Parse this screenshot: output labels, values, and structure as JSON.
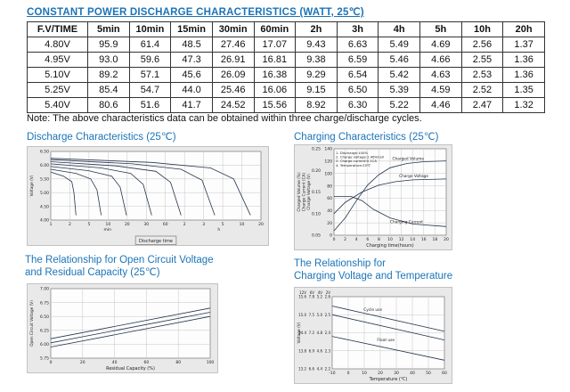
{
  "page": {
    "title": "CONSTANT POWER DISCHARGE CHARACTERISTICS (WATT, 25℃)",
    "note": "Note: The above characteristics data can be obtained within three charge/discharge cycles."
  },
  "colors": {
    "accent": "#1b74b8",
    "chart_line": "#24344d"
  },
  "table": {
    "headers": [
      "F.V/TIME",
      "5min",
      "10min",
      "15min",
      "30min",
      "60min",
      "2h",
      "3h",
      "4h",
      "5h",
      "10h",
      "20h"
    ],
    "rows": [
      [
        "4.80V",
        "95.9",
        "61.4",
        "48.5",
        "27.46",
        "17.07",
        "9.43",
        "6.63",
        "5.49",
        "4.69",
        "2.56",
        "1.37"
      ],
      [
        "4.95V",
        "93.0",
        "59.6",
        "47.3",
        "26.91",
        "16.81",
        "9.38",
        "6.59",
        "5.46",
        "4.66",
        "2.55",
        "1.36"
      ],
      [
        "5.10V",
        "89.2",
        "57.1",
        "45.6",
        "26.09",
        "16.38",
        "9.29",
        "6.54",
        "5.42",
        "4.63",
        "2.53",
        "1.36"
      ],
      [
        "5.25V",
        "85.4",
        "54.7",
        "44.0",
        "25.46",
        "16.06",
        "9.15",
        "6.50",
        "5.39",
        "4.59",
        "2.52",
        "1.35"
      ],
      [
        "5.40V",
        "80.6",
        "51.6",
        "41.7",
        "24.52",
        "15.56",
        "8.92",
        "6.30",
        "5.22",
        "4.46",
        "2.47",
        "1.32"
      ]
    ]
  },
  "sections": [
    {
      "heading": "Discharge Characteristics (25℃)"
    },
    {
      "heading": "Charging Characteristics (25℃)"
    },
    {
      "heading": "The Relationship for Open Circuit Voltage\nand Residual Capacity (25℃)"
    },
    {
      "heading": "The Relationship for\nCharging Voltage and Temperature"
    }
  ],
  "chart_data": [
    {
      "type": "line",
      "title": "Discharge Characteristics (25℃)",
      "ylabel": "Voltage (V)",
      "xlabel": "Discharge time",
      "xlabel_boxed": true,
      "yticks": [
        "6.50",
        "6.00",
        "5.50",
        "5.00",
        "4.50",
        "4.00"
      ],
      "xticks": [
        "1",
        "2",
        "5",
        "10",
        "20",
        "30",
        "60",
        "2",
        "3",
        "5",
        "10",
        "20"
      ],
      "xunit_labels": [
        {
          "text": "min",
          "x": 0.27
        },
        {
          "text": "h",
          "x": 0.8
        }
      ],
      "margins": {
        "l": 26,
        "r": 8,
        "t": 5,
        "b": 28
      },
      "series": [
        {
          "name": "curve-1",
          "points": [
            [
              0,
              0.3
            ],
            [
              0.06,
              0.36
            ],
            [
              0.1,
              0.44
            ],
            [
              0.11,
              0.6
            ],
            [
              0.12,
              0.93
            ]
          ]
        },
        {
          "name": "curve-2",
          "points": [
            [
              0,
              0.26
            ],
            [
              0.12,
              0.32
            ],
            [
              0.19,
              0.4
            ],
            [
              0.22,
              0.56
            ],
            [
              0.24,
              0.93
            ]
          ]
        },
        {
          "name": "curve-3",
          "points": [
            [
              0,
              0.22
            ],
            [
              0.18,
              0.28
            ],
            [
              0.29,
              0.36
            ],
            [
              0.33,
              0.52
            ],
            [
              0.36,
              0.93
            ]
          ]
        },
        {
          "name": "curve-4",
          "points": [
            [
              0,
              0.18
            ],
            [
              0.24,
              0.24
            ],
            [
              0.38,
              0.32
            ],
            [
              0.44,
              0.48
            ],
            [
              0.48,
              0.93
            ]
          ]
        },
        {
          "name": "curve-5",
          "points": [
            [
              0,
              0.15
            ],
            [
              0.31,
              0.21
            ],
            [
              0.5,
              0.29
            ],
            [
              0.57,
              0.45
            ],
            [
              0.62,
              0.93
            ]
          ]
        },
        {
          "name": "curve-6",
          "points": [
            [
              0,
              0.12
            ],
            [
              0.39,
              0.18
            ],
            [
              0.62,
              0.26
            ],
            [
              0.72,
              0.42
            ],
            [
              0.78,
              0.93
            ]
          ]
        },
        {
          "name": "curve-7",
          "points": [
            [
              0,
              0.1
            ],
            [
              0.48,
              0.16
            ],
            [
              0.76,
              0.24
            ],
            [
              0.87,
              0.4
            ],
            [
              0.95,
              0.93
            ]
          ]
        }
      ]
    },
    {
      "type": "line",
      "title": "Charging Characteristics (25℃)",
      "ylabels": [
        "Charged Volume (%)",
        "Charge Current (CA)",
        "Charge Voltage (V)"
      ],
      "xlabel": "Charging time(hours)",
      "yticks": [
        "140",
        "120",
        "100",
        "80",
        "60",
        "40",
        "20",
        "0"
      ],
      "yticks2": [
        "0.25",
        "0.20",
        "0.15",
        "0.10",
        "0.05"
      ],
      "xticks": [
        "0",
        "2",
        "4",
        "6",
        "8",
        "10",
        "12",
        "14",
        "16",
        "18",
        "20"
      ],
      "margins": {
        "l": 44,
        "r": 6,
        "t": 4,
        "b": 16
      },
      "legend_lines": [
        "1. Discharge:100%",
        "2. Charge voltage:2.46V/cell",
        "3. Charge current:0.1CA",
        "4. Temperature:25℃"
      ],
      "annotations": [
        {
          "text": "Charged Volume",
          "x": 0.52,
          "y": 0.13
        },
        {
          "text": "Charge Voltage",
          "x": 0.58,
          "y": 0.33
        },
        {
          "text": "Charging Current",
          "x": 0.5,
          "y": 0.86
        }
      ],
      "series": [
        {
          "name": "charged-volume",
          "points": [
            [
              0,
              0.95
            ],
            [
              0.1,
              0.8
            ],
            [
              0.2,
              0.6
            ],
            [
              0.3,
              0.42
            ],
            [
              0.4,
              0.3
            ],
            [
              0.5,
              0.22
            ],
            [
              0.65,
              0.17
            ],
            [
              0.8,
              0.15
            ],
            [
              1,
              0.14
            ]
          ]
        },
        {
          "name": "charge-voltage",
          "points": [
            [
              0,
              0.75
            ],
            [
              0.1,
              0.62
            ],
            [
              0.25,
              0.5
            ],
            [
              0.4,
              0.42
            ],
            [
              0.55,
              0.38
            ],
            [
              0.7,
              0.36
            ],
            [
              1,
              0.35
            ]
          ]
        },
        {
          "name": "charging-current",
          "points": [
            [
              0,
              0.55
            ],
            [
              0.15,
              0.55
            ],
            [
              0.25,
              0.6
            ],
            [
              0.35,
              0.7
            ],
            [
              0.5,
              0.8
            ],
            [
              0.7,
              0.87
            ],
            [
              1,
              0.9
            ]
          ]
        }
      ]
    },
    {
      "type": "line",
      "title": "The Relationship for Open Circuit Voltage and Residual Capacity (25℃)",
      "ylabel": "Open Circuit Voltage (V)",
      "xlabel": "Residual Capacity (%)",
      "yticks": [
        "7.00",
        "6.75",
        "6.50",
        "6.25",
        "6.00",
        "5.75"
      ],
      "xticks": [
        "0",
        "20",
        "40",
        "60",
        "80",
        "100"
      ],
      "margins": {
        "l": 26,
        "r": 8,
        "t": 5,
        "b": 16
      },
      "series": [
        {
          "name": "curve-1",
          "points": [
            [
              0,
              0.72
            ],
            [
              0.5,
              0.5
            ],
            [
              1,
              0.28
            ]
          ]
        },
        {
          "name": "curve-2",
          "points": [
            [
              0,
              0.78
            ],
            [
              0.5,
              0.56
            ],
            [
              1,
              0.34
            ]
          ]
        },
        {
          "name": "curve-3",
          "points": [
            [
              0,
              0.84
            ],
            [
              0.5,
              0.62
            ],
            [
              1,
              0.4
            ]
          ]
        }
      ]
    },
    {
      "type": "line",
      "title": "The Relationship for Charging Voltage and Temperature",
      "ylabel": "Voltage (V)",
      "xlabel": "Temperature (℃)",
      "ytick_table": {
        "headers": [
          "12V",
          "6V",
          "4V",
          "2V"
        ],
        "rows": [
          [
            "15.6",
            "7.8",
            "5.2",
            "2.6"
          ],
          [
            "15.0",
            "7.5",
            "5.0",
            "2.5"
          ],
          [
            "14.4",
            "7.2",
            "4.8",
            "2.4"
          ],
          [
            "13.8",
            "6.9",
            "4.6",
            "2.3"
          ],
          [
            "13.2",
            "6.6",
            "4.4",
            "2.2"
          ]
        ]
      },
      "xticks": [
        "-10",
        "0",
        "10",
        "20",
        "30",
        "40",
        "50",
        "60"
      ],
      "margins": {
        "l": 42,
        "r": 8,
        "t": 10,
        "b": 16
      },
      "annotations": [
        {
          "text": "Cycle use",
          "x": 0.28,
          "y": 0.2
        },
        {
          "text": "Float use",
          "x": 0.4,
          "y": 0.62
        }
      ],
      "series": [
        {
          "name": "cycle-use-upper",
          "points": [
            [
              0,
              0.13
            ],
            [
              1,
              0.48
            ]
          ]
        },
        {
          "name": "cycle-use-lower",
          "points": [
            [
              0,
              0.25
            ],
            [
              1,
              0.6
            ]
          ]
        },
        {
          "name": "float-use",
          "points": [
            [
              0,
              0.55
            ],
            [
              1,
              0.88
            ]
          ]
        }
      ]
    }
  ]
}
